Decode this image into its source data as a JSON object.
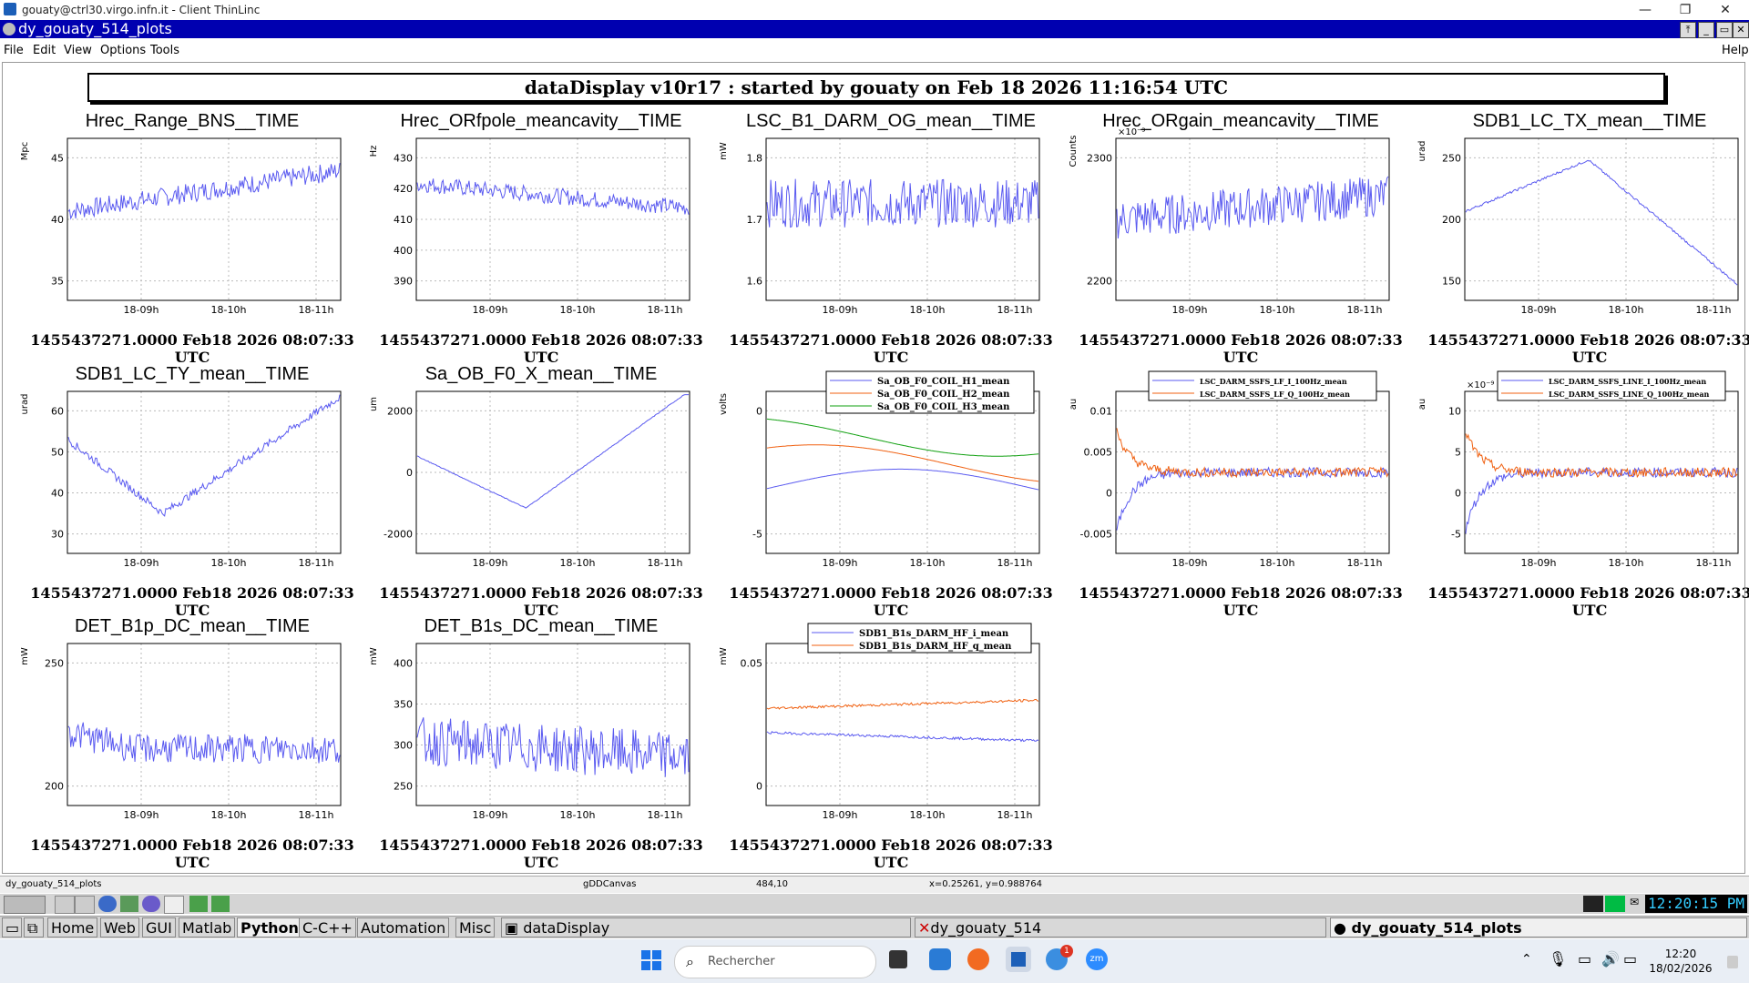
{
  "window": {
    "title": "gouaty@ctrl30.virgo.infn.it - Client ThinLinc"
  },
  "app": {
    "title": "dy_gouaty_514_plots"
  },
  "menu": {
    "file": "File",
    "edit": "Edit",
    "view": "View",
    "options": "Options",
    "tools": "Tools",
    "help": "Help"
  },
  "header": "dataDisplay v10r17 : started by gouaty on Feb 18 2026 11:16:54 UTC",
  "footer": "1455437271.0000 Feb18 2026 08:07:33 UTC",
  "xticks": [
    "18-09h",
    "18-10h",
    "18-11h"
  ],
  "plots": [
    {
      "title": "Hrec_Range_BNS__TIME",
      "unit": "Mpc",
      "yticks": [
        "45",
        "40",
        "35"
      ],
      "color": "#5a5af0"
    },
    {
      "title": "Hrec_ORfpole_meancavity__TIME",
      "unit": "Hz",
      "yticks": [
        "430",
        "420",
        "410",
        "400",
        "390"
      ],
      "color": "#5a5af0"
    },
    {
      "title": "LSC_B1_DARM_OG_mean__TIME",
      "unit": "mW",
      "yticks": [
        "1.8",
        "1.7",
        "1.6"
      ],
      "color": "#5a5af0"
    },
    {
      "title": "Hrec_ORgain_meancavity__TIME",
      "unit": "Counts",
      "yticks": [
        "2300",
        "2200"
      ],
      "exp": "×10⁻³",
      "color": "#5a5af0"
    },
    {
      "title": "SDB1_LC_TX_mean__TIME",
      "unit": "urad",
      "yticks": [
        "250",
        "200",
        "150"
      ],
      "color": "#5a5af0"
    },
    {
      "title": "SDB1_LC_TY_mean__TIME",
      "unit": "urad",
      "yticks": [
        "60",
        "50",
        "40",
        "30"
      ],
      "color": "#5a5af0"
    },
    {
      "title": "Sa_OB_F0_X_mean__TIME",
      "unit": "um",
      "yticks": [
        "2000",
        "0",
        "-2000"
      ],
      "color": "#5a5af0"
    },
    {
      "title": "",
      "unit": "volts",
      "yticks": [
        "0",
        "-5"
      ],
      "legend": [
        "Sa_OB_F0_COIL_H1_mean",
        "Sa_OB_F0_COIL_H2_mean",
        "Sa_OB_F0_COIL_H3_mean"
      ],
      "colors": [
        "#5a5af0",
        "#f06010",
        "#10a010"
      ]
    },
    {
      "title": "",
      "unit": "au",
      "yticks": [
        "0.01",
        "0.005",
        "0",
        "-0.005"
      ],
      "legend": [
        "LSC_DARM_SSFS_LF_I_100Hz_mean",
        "LSC_DARM_SSFS_LF_Q_100Hz_mean"
      ],
      "colors": [
        "#5a5af0",
        "#f06010"
      ]
    },
    {
      "title": "",
      "unit": "au",
      "yticks": [
        "10",
        "5",
        "0",
        "-5"
      ],
      "exp": "×10⁻⁹",
      "legend": [
        "LSC_DARM_SSFS_LINE_I_100Hz_mean",
        "LSC_DARM_SSFS_LINE_Q_100Hz_mean"
      ],
      "colors": [
        "#5a5af0",
        "#f06010"
      ]
    },
    {
      "title": "DET_B1p_DC_mean__TIME",
      "unit": "mW",
      "yticks": [
        "250",
        "200"
      ],
      "color": "#5a5af0"
    },
    {
      "title": "DET_B1s_DC_mean__TIME",
      "unit": "mW",
      "yticks": [
        "400",
        "350",
        "300",
        "250"
      ],
      "color": "#5a5af0"
    },
    {
      "title": "",
      "unit": "mW",
      "yticks": [
        "0.05",
        "0"
      ],
      "legend": [
        "SDB1_B1s_DARM_HF_i_mean",
        "SDB1_B1s_DARM_HF_q_mean"
      ],
      "colors": [
        "#5a5af0",
        "#f06010"
      ]
    }
  ],
  "status": {
    "name": "dy_gouaty_514_plots",
    "canvas": "gDDCanvas",
    "pos": "484,10",
    "coords": "x=0.25261, y=0.988764"
  },
  "panel": {
    "tabs": [
      "Home",
      "Web",
      "GUI",
      "Matlab",
      "Python",
      "C-C++",
      "Automation",
      "Misc"
    ],
    "tasks": [
      "dataDisplay",
      "dy_gouaty_514",
      "dy_gouaty_514_plots"
    ],
    "clock": "12:20:15 PM"
  },
  "taskbar": {
    "search": "Rechercher",
    "time": "12:20",
    "date": "18/02/2026",
    "badge": "1"
  }
}
